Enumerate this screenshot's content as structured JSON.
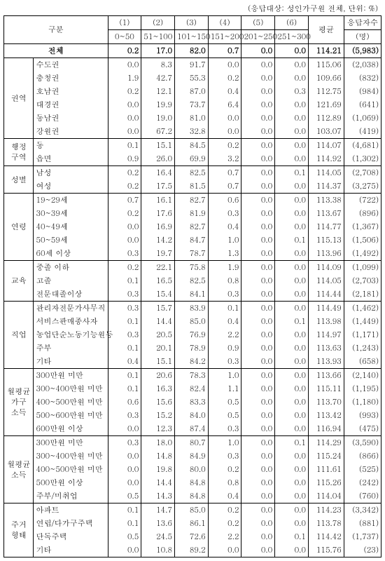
{
  "caption": "(응답대상: 성인가구원 전체, 단위: %)",
  "header": {
    "gubun": "구분",
    "cols": [
      {
        "top": "(1)",
        "bot": "0~50"
      },
      {
        "top": "(2)",
        "bot": "51~100"
      },
      {
        "top": "(3)",
        "bot": "101~150"
      },
      {
        "top": "(4)",
        "bot": "151~200"
      },
      {
        "top": "(5)",
        "bot": "201~250"
      },
      {
        "top": "(6)",
        "bot": "251~300"
      }
    ],
    "avg": "평균",
    "count_top": "응답자수",
    "count_bot": "(명)"
  },
  "total": {
    "label": "전체",
    "vals": [
      "0.2",
      "17.0",
      "82.0",
      "0.7",
      "0.0",
      "0.0",
      "114.21",
      "(5,983)"
    ]
  },
  "groups": [
    {
      "label": "권역",
      "rows": [
        {
          "label": "수도권",
          "vals": [
            "0.0",
            "8.3",
            "91.7",
            "0.0",
            "0.0",
            "0.0",
            "115.06",
            "(2,038)"
          ]
        },
        {
          "label": "충청권",
          "vals": [
            "1.9",
            "42.7",
            "55.3",
            "0.2",
            "0.0",
            "0.0",
            "109.66",
            "(832)"
          ]
        },
        {
          "label": "호남권",
          "vals": [
            "0.2",
            "12.1",
            "87.0",
            "0.4",
            "0.0",
            "0.3",
            "112.75",
            "(984)"
          ]
        },
        {
          "label": "대경권",
          "vals": [
            "0.0",
            "19.9",
            "73.7",
            "6.4",
            "0.0",
            "0.0",
            "121.69",
            "(641)"
          ]
        },
        {
          "label": "동남권",
          "vals": [
            "0.0",
            "19.0",
            "81.0",
            "0.0",
            "0.0",
            "0.0",
            "112.89",
            "(1,069)"
          ]
        },
        {
          "label": "강원권",
          "vals": [
            "0.0",
            "67.2",
            "32.8",
            "0.0",
            "0.0",
            "0.0",
            "103.07",
            "(419)"
          ]
        }
      ]
    },
    {
      "label": "행정\n구역",
      "rows": [
        {
          "label": "동",
          "vals": [
            "0.1",
            "15.1",
            "84.5",
            "0.2",
            "0.0",
            "0.0",
            "114.07",
            "(4,681)"
          ]
        },
        {
          "label": "읍면",
          "vals": [
            "0.9",
            "26.0",
            "69.9",
            "3.2",
            "0.0",
            "0.0",
            "114.92",
            "(1,302)"
          ]
        }
      ]
    },
    {
      "label": "성별",
      "rows": [
        {
          "label": "남성",
          "vals": [
            "0.2",
            "16.4",
            "82.5",
            "0.7",
            "0.0",
            "0.1",
            "114.05",
            "(2,708)"
          ]
        },
        {
          "label": "여성",
          "vals": [
            "0.2",
            "17.5",
            "81.5",
            "0.7",
            "0.0",
            "0.0",
            "114.37",
            "(3,275)"
          ]
        }
      ]
    },
    {
      "label": "연령",
      "rows": [
        {
          "label": "19~29세",
          "vals": [
            "0.7",
            "16.1",
            "82.7",
            "0.6",
            "0.0",
            "0.0",
            "113.38",
            "(722)"
          ]
        },
        {
          "label": "30~39세",
          "vals": [
            "0.2",
            "17.6",
            "81.9",
            "0.3",
            "0.0",
            "0.0",
            "113.67",
            "(896)"
          ]
        },
        {
          "label": "40~49세",
          "vals": [
            "0.0",
            "16.9",
            "82.7",
            "0.4",
            "0.0",
            "0.0",
            "114.77",
            "(1,367)"
          ]
        },
        {
          "label": "50~59세",
          "vals": [
            "0.0",
            "14.2",
            "84.7",
            "1.0",
            "0.0",
            "0.1",
            "115.13",
            "(1,506)"
          ]
        },
        {
          "label": "60세 이상",
          "vals": [
            "0.3",
            "19.7",
            "78.7",
            "1.3",
            "0.0",
            "0.0",
            "113.96",
            "(1,492)"
          ]
        }
      ]
    },
    {
      "label": "교육",
      "rows": [
        {
          "label": "중졸 이하",
          "vals": [
            "0.2",
            "22.1",
            "75.8",
            "1.9",
            "0.0",
            "0.0",
            "114.09",
            "(1,099)"
          ]
        },
        {
          "label": "고졸",
          "vals": [
            "0.1",
            "16.5",
            "82.5",
            "0.8",
            "0.0",
            "0.0",
            "114.05",
            "(2,703)"
          ]
        },
        {
          "label": "전문대졸이상",
          "vals": [
            "0.3",
            "15.4",
            "84.1",
            "0.3",
            "0.0",
            "0.0",
            "114.44",
            "(2,181)"
          ]
        }
      ]
    },
    {
      "label": "직업",
      "rows": [
        {
          "label": "관리자전문가사무직",
          "vals": [
            "0.3",
            "15.7",
            "83.9",
            "0.1",
            "0.0",
            "0.0",
            "114.49",
            "(1,462)"
          ]
        },
        {
          "label": "서비스판매종사자",
          "vals": [
            "0.1",
            "14.4",
            "85.0",
            "0.4",
            "0.0",
            "0.1",
            "113.98",
            "(1,449)"
          ]
        },
        {
          "label": "농업단순노동기능원등",
          "vals": [
            "0.3",
            "20.5",
            "76.9",
            "2.2",
            "0.0",
            "0.0",
            "114.97",
            "(1,171)"
          ]
        },
        {
          "label": "주부",
          "vals": [
            "0.1",
            "20.1",
            "78.9",
            "0.9",
            "0.0",
            "0.0",
            "113.63",
            "(1,243)"
          ]
        },
        {
          "label": "기타",
          "vals": [
            "0.4",
            "15.1",
            "84.2",
            "0.3",
            "0.0",
            "0.0",
            "113.93",
            "(658)"
          ]
        }
      ]
    },
    {
      "label": "월평균\n가구\n소득",
      "rows": [
        {
          "label": "300만원 미만",
          "vals": [
            "0.1",
            "20.6",
            "78.3",
            "1.0",
            "0.0",
            "0.0",
            "113.66",
            "(2,140)"
          ]
        },
        {
          "label": "300~400만원 미만",
          "vals": [
            "0.1",
            "16.3",
            "82.4",
            "1.1",
            "0.0",
            "0.0",
            "115.11",
            "(1,195)"
          ]
        },
        {
          "label": "400~500만원 미만",
          "vals": [
            "0.6",
            "15.6",
            "83.3",
            "0.5",
            "0.0",
            "0.0",
            "113.70",
            "(1,180)"
          ]
        },
        {
          "label": "500~600만원 미만",
          "vals": [
            "0.3",
            "15.2",
            "84.0",
            "0.5",
            "0.0",
            "0.0",
            "113.42",
            "(993)"
          ]
        },
        {
          "label": "600만원 이상",
          "vals": [
            "0.0",
            "12.3",
            "87.4",
            "0.3",
            "0.0",
            "0.0",
            "116.94",
            "(475)"
          ]
        }
      ]
    },
    {
      "label": "월평균\n소득",
      "rows": [
        {
          "label": "300만원 미만",
          "vals": [
            "0.3",
            "18.0",
            "80.7",
            "1.0",
            "0.0",
            "0.1",
            "114.29",
            "(3,590)"
          ]
        },
        {
          "label": "300~400만원 미만",
          "vals": [
            "0.0",
            "14.8",
            "84.9",
            "0.3",
            "0.0",
            "0.0",
            "115.24",
            "(866)"
          ]
        },
        {
          "label": "400~500만원 미만",
          "vals": [
            "0.0",
            "19.8",
            "80.0",
            "0.2",
            "0.0",
            "0.0",
            "111.61",
            "(525)"
          ]
        },
        {
          "label": "500만원 이상",
          "vals": [
            "0.0",
            "14.4",
            "84.8",
            "0.8",
            "0.0",
            "0.0",
            "115.26",
            "(242)"
          ]
        },
        {
          "label": "주부/미취업",
          "vals": [
            "0.5",
            "14.3",
            "84.8",
            "0.4",
            "0.0",
            "0.0",
            "114.04",
            "(760)"
          ]
        }
      ]
    },
    {
      "label": "주거\n형태",
      "rows": [
        {
          "label": "아파트",
          "vals": [
            "0.1",
            "14.7",
            "85.0",
            "0.2",
            "0.0",
            "0.0",
            "114.23",
            "(3,342)"
          ]
        },
        {
          "label": "연립/다가구주택",
          "vals": [
            "0.1",
            "13.6",
            "86.1",
            "0.2",
            "0.0",
            "0.0",
            "113.78",
            "(881)"
          ]
        },
        {
          "label": "단독주택",
          "vals": [
            "0.5",
            "24.5",
            "72.6",
            "2.2",
            "0.0",
            "0.1",
            "114.42",
            "(1,737)"
          ]
        },
        {
          "label": "기타",
          "vals": [
            "0.0",
            "10.8",
            "89.2",
            "0.0",
            "0.0",
            "0.0",
            "115.76",
            "(23)"
          ]
        }
      ]
    }
  ]
}
